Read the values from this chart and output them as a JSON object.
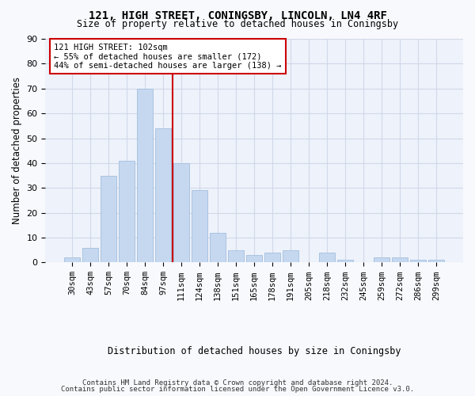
{
  "title": "121, HIGH STREET, CONINGSBY, LINCOLN, LN4 4RF",
  "subtitle": "Size of property relative to detached houses in Coningsby",
  "xlabel": "Distribution of detached houses by size in Coningsby",
  "ylabel": "Number of detached properties",
  "categories": [
    "30sqm",
    "43sqm",
    "57sqm",
    "70sqm",
    "84sqm",
    "97sqm",
    "111sqm",
    "124sqm",
    "138sqm",
    "151sqm",
    "165sqm",
    "178sqm",
    "191sqm",
    "205sqm",
    "218sqm",
    "232sqm",
    "245sqm",
    "259sqm",
    "272sqm",
    "286sqm",
    "299sqm"
  ],
  "values": [
    2,
    6,
    35,
    41,
    70,
    54,
    40,
    29,
    12,
    5,
    3,
    4,
    5,
    0,
    4,
    1,
    0,
    2,
    2,
    1,
    1
  ],
  "bar_color": "#c5d8f0",
  "bar_edge_color": "#aac4e0",
  "grid_color": "#d0d8e8",
  "bg_color": "#eef2fa",
  "vline_color": "#cc0000",
  "annotation_text": "121 HIGH STREET: 102sqm\n← 55% of detached houses are smaller (172)\n44% of semi-detached houses are larger (138) →",
  "annotation_box_color": "#cc0000",
  "ylim": [
    0,
    90
  ],
  "yticks": [
    0,
    10,
    20,
    30,
    40,
    50,
    60,
    70,
    80,
    90
  ],
  "footer_line1": "Contains HM Land Registry data © Crown copyright and database right 2024.",
  "footer_line2": "Contains public sector information licensed under the Open Government Licence v3.0."
}
